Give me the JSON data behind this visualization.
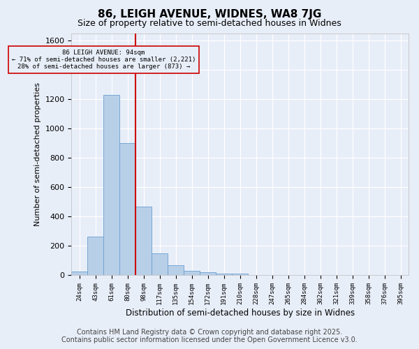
{
  "title": "86, LEIGH AVENUE, WIDNES, WA8 7JG",
  "subtitle": "Size of property relative to semi-detached houses in Widnes",
  "xlabel": "Distribution of semi-detached houses by size in Widnes",
  "ylabel": "Number of semi-detached properties",
  "categories": [
    "24sqm",
    "43sqm",
    "61sqm",
    "80sqm",
    "98sqm",
    "117sqm",
    "135sqm",
    "154sqm",
    "172sqm",
    "191sqm",
    "210sqm",
    "228sqm",
    "247sqm",
    "265sqm",
    "284sqm",
    "302sqm",
    "321sqm",
    "339sqm",
    "358sqm",
    "376sqm",
    "395sqm"
  ],
  "values": [
    25,
    265,
    1230,
    900,
    470,
    150,
    70,
    30,
    20,
    10,
    10,
    0,
    0,
    0,
    0,
    0,
    0,
    0,
    0,
    0,
    0
  ],
  "bar_color": "#b8cfe8",
  "bar_edge_color": "#6a9fd0",
  "red_line_index": 4,
  "annotation_title": "86 LEIGH AVENUE: 94sqm",
  "annotation_line1": "← 71% of semi-detached houses are smaller (2,221)",
  "annotation_line2": "28% of semi-detached houses are larger (873) →",
  "annotation_color": "#cc0000",
  "background_color": "#e8eef8",
  "grid_color": "#ffffff",
  "ylim": [
    0,
    1650
  ],
  "yticks": [
    0,
    200,
    400,
    600,
    800,
    1000,
    1200,
    1400,
    1600
  ],
  "footer_line1": "Contains HM Land Registry data © Crown copyright and database right 2025.",
  "footer_line2": "Contains public sector information licensed under the Open Government Licence v3.0.",
  "title_fontsize": 11,
  "subtitle_fontsize": 9,
  "footer_fontsize": 7
}
